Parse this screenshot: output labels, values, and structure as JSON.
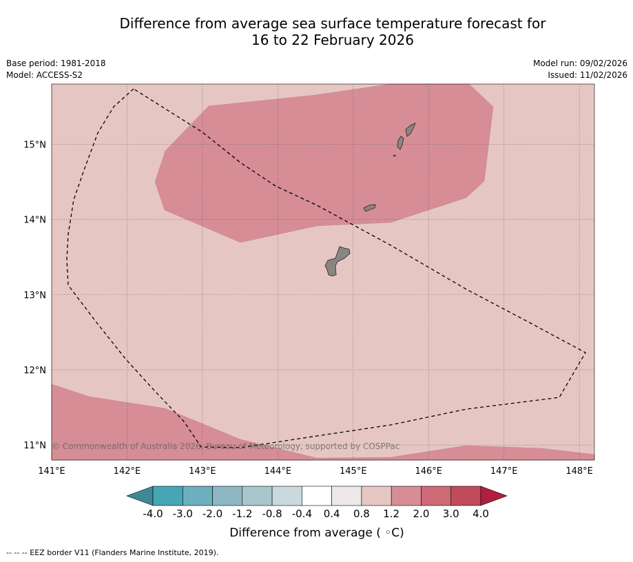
{
  "title": {
    "line1": "Difference from average sea surface temperature forecast for",
    "line2": "16 to 22 February 2026"
  },
  "meta": {
    "base_period": "Base period: 1981-2018",
    "model": "Model: ACCESS-S2",
    "model_run": "Model run: 09/02/2026",
    "issued": "Issued: 11/02/2026"
  },
  "map": {
    "copyright": "© Commonwealth of Australia 2026, Bureau of Meteorology, supported by COSPPac",
    "lon_labels": [
      "141°E",
      "142°E",
      "143°E",
      "144°E",
      "145°E",
      "146°E",
      "147°E",
      "148°E"
    ],
    "lat_labels": [
      "15°N",
      "14°N",
      "13°N",
      "12°N",
      "11°N"
    ],
    "lon_values": [
      141,
      142,
      143,
      144,
      145,
      146,
      147,
      148
    ],
    "lat_values": [
      15,
      14,
      13,
      12,
      11
    ],
    "extent": {
      "lon_min": 141.0,
      "lon_max": 148.2,
      "lat_min": 10.8,
      "lat_max": 15.8
    },
    "regions": [
      {
        "name": "anomaly-0.8-to-1.2",
        "color": "#e6c6c3"
      },
      {
        "name": "anomaly-1.2-to-2.0-north",
        "color": "#d68d96"
      },
      {
        "name": "anomaly-1.2-to-2.0-south",
        "color": "#d68d96"
      }
    ],
    "land_color": "#8a8582"
  },
  "colorbar": {
    "labels": [
      "-4.0",
      "-3.0",
      "-2.0",
      "-1.2",
      "-0.8",
      "-0.4",
      "0.4",
      "0.8",
      "1.2",
      "2.0",
      "3.0",
      "4.0"
    ],
    "colors": [
      "#46a6b5",
      "#6cb0bf",
      "#8cb7c3",
      "#a9c6cb",
      "#c9d9dd",
      "#ffffff",
      "#ece9e8",
      "#e6c6c3",
      "#d68d96",
      "#cf6a77",
      "#c04b5a"
    ],
    "under_color": "#3e8996",
    "over_color": "#b21e3c",
    "label": "Difference from average ( ◦C)"
  },
  "footer": {
    "legend_text": "--  --  -- EEZ border V11 (Flanders Marine Institute, 2019)."
  }
}
